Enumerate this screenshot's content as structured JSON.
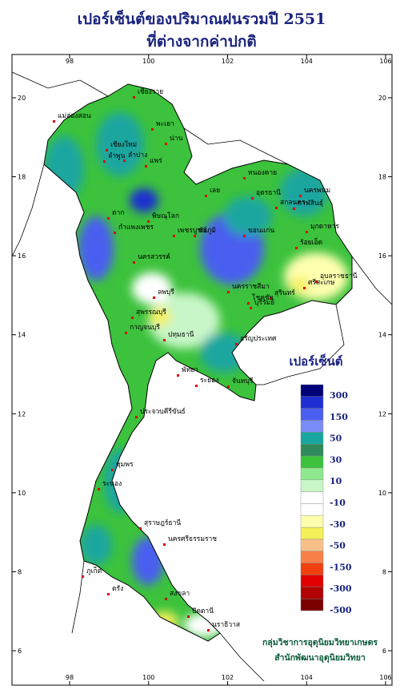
{
  "title": {
    "line1": "เปอร์เซ็นต์ของปริมาณฝนรวมปี  2551",
    "line2": "ที่ต่างจากค่าปกติ"
  },
  "map": {
    "lon_ticks": [
      98,
      100,
      102,
      104,
      106
    ],
    "lat_ticks": [
      6,
      8,
      10,
      12,
      14,
      16,
      18,
      20
    ],
    "places": [
      "เชียงราย",
      "แม่ฮ่องสอน",
      "พะเยา",
      "เชียงใหม่",
      "ลำพูน",
      "น่าน",
      "ลำปาง",
      "แพร่",
      "ตาก",
      "พิษณุโลก",
      "กำแพงเพชร",
      "เพชรบูรณ์",
      "นครสวรรค์",
      "หนองคาย",
      "เลย",
      "อุดรธานี",
      "นครพนม",
      "สกลนคร",
      "ขอนแก่น",
      "กาฬสินธุ์",
      "มุกดาหาร",
      "ชัยภูมิ",
      "ร้อยเอ็ด",
      "อุบลราชธานี",
      "สุรินทร์",
      "ศรีสะเกษ",
      "นครราชสีมา",
      "โชคชัย",
      "บุรีรัมย์",
      "ลพบุรี",
      "สุพรรณบุรี",
      "กาญจนบุรี",
      "ปทุมธานี",
      "อรัญประเทศ",
      "พัทยา",
      "ระยอง",
      "จันทบุรี",
      "ประจวบคีรีขันธ์",
      "ชุมพร",
      "ระนอง",
      "สุราษฎร์ธานี",
      "นครศรีธรรมราช",
      "ภูเก็ต",
      "ตรัง",
      "สงขลา",
      "ปัตตานี",
      "นราธิวาส"
    ]
  },
  "legend": {
    "title": "เปอร์เซ็นต์",
    "colors": [
      "#00007a",
      "#1e2ed2",
      "#4a5ff0",
      "#7a8cf7",
      "#1aa6a0",
      "#2e8a5a",
      "#3cc23c",
      "#8ee88e",
      "#c8f6c8",
      "#ffffff",
      "#ffffff",
      "#ffffb0",
      "#f4f05a",
      "#f8c088",
      "#f88048",
      "#f04010",
      "#e00000",
      "#b00000",
      "#7a0000"
    ],
    "labels": [
      300,
      150,
      50,
      30,
      10,
      -10,
      -30,
      -50,
      -150,
      -300,
      -500
    ]
  },
  "credit": {
    "line1": "กลุ่มวิชาการอุตุนิยมวิทยาเกษตร",
    "line2": "สำนักพัฒนาอุตุนิยมวิทยา"
  }
}
